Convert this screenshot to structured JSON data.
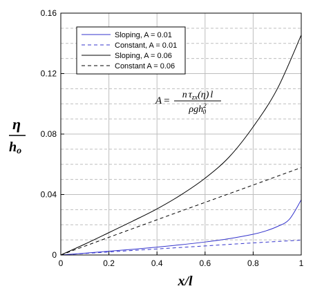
{
  "chart_data": {
    "type": "line",
    "xlim": [
      0,
      1
    ],
    "ylim": [
      0,
      0.16
    ],
    "x_ticks": [
      "0",
      "0.2",
      "0.4",
      "0.6",
      "0.8",
      "1"
    ],
    "y_ticks": [
      "0",
      "0.04",
      "0.08",
      "0.12",
      "0.16"
    ],
    "xlabel": "x/l",
    "ylabel": {
      "numerator": "η",
      "denominator": "h",
      "denominator_subscript": "o"
    },
    "grid": true,
    "minor_grid_y": true,
    "legend": {
      "placement": "top-left"
    },
    "formula": {
      "lhs": "A",
      "equals": "=",
      "numerator_n": "n",
      "numerator_tau": "τ",
      "numerator_tau_sub": "zx",
      "numerator_eta": "(η)",
      "numerator_l": "l",
      "denominator_rho": "ρ",
      "denominator_g": "g",
      "denominator_h": "h",
      "denominator_h_sub": "0",
      "denominator_h_sup": "2"
    },
    "series": [
      {
        "name": "Sloping, A = 0.01",
        "color": "#3333cc",
        "dashed": false,
        "x": [
          0,
          0.1,
          0.2,
          0.3,
          0.4,
          0.5,
          0.6,
          0.7,
          0.8,
          0.85,
          0.9,
          0.95,
          1.0
        ],
        "y": [
          0,
          0.0012,
          0.0025,
          0.0038,
          0.0052,
          0.0068,
          0.0086,
          0.0108,
          0.0137,
          0.0158,
          0.0188,
          0.0235,
          0.0365
        ]
      },
      {
        "name": "Constant, A = 0.01",
        "color": "#3333cc",
        "dashed": true,
        "x": [
          0,
          0.2,
          0.4,
          0.6,
          0.8,
          1.0
        ],
        "y": [
          0,
          0.002,
          0.004,
          0.006,
          0.008,
          0.0098
        ]
      },
      {
        "name": "Sloping, A = 0.06",
        "color": "#000000",
        "dashed": false,
        "x": [
          0,
          0.1,
          0.2,
          0.3,
          0.4,
          0.5,
          0.6,
          0.7,
          0.8,
          0.9,
          1.0
        ],
        "y": [
          0,
          0.0072,
          0.0148,
          0.0225,
          0.0305,
          0.0398,
          0.0508,
          0.0648,
          0.0848,
          0.1098,
          0.1455
        ]
      },
      {
        "name": "Constant A = 0.06",
        "color": "#000000",
        "dashed": true,
        "x": [
          0,
          0.2,
          0.4,
          0.6,
          0.8,
          1.0
        ],
        "y": [
          0,
          0.0117,
          0.0233,
          0.0348,
          0.0463,
          0.0578
        ]
      }
    ]
  }
}
